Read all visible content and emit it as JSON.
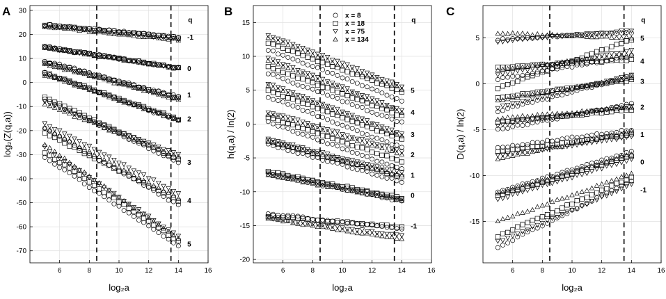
{
  "figure": {
    "panel_labels": [
      "A",
      "B",
      "C"
    ]
  },
  "chart_data": [
    {
      "type": "scatter",
      "panel": "A",
      "xlabel": "log₂a",
      "ylabel": "log₂(Z(q,a))",
      "xlim": [
        4,
        16
      ],
      "ylim": [
        -75,
        32
      ],
      "xticks": [
        6,
        8,
        10,
        12,
        14,
        16
      ],
      "yticks": [
        -70,
        -60,
        -50,
        -40,
        -30,
        -20,
        -10,
        0,
        10,
        20,
        30
      ],
      "grid": true,
      "legend_title": "q",
      "vlines": [
        8.5,
        13.5
      ],
      "x_start": 5,
      "x_end": 14,
      "n_points": 28,
      "groups": [
        {
          "q": "-1",
          "label_y": 19,
          "series": [
            {
              "marker": "circle",
              "y0": 24,
              "y1": 19
            },
            {
              "marker": "square",
              "y0": 24,
              "y1": 18.6
            },
            {
              "marker": "triangle-down",
              "y0": 23.6,
              "y1": 18.2
            },
            {
              "marker": "triangle-up",
              "y0": 23.2,
              "y1": 17.8
            }
          ]
        },
        {
          "q": "0",
          "label_y": 6,
          "series": [
            {
              "marker": "circle",
              "y0": 15,
              "y1": 6
            },
            {
              "marker": "square",
              "y0": 15,
              "y1": 6
            },
            {
              "marker": "triangle-down",
              "y0": 14.6,
              "y1": 6
            },
            {
              "marker": "triangle-up",
              "y0": 14.4,
              "y1": 6
            }
          ]
        },
        {
          "q": "1",
          "label_y": -5,
          "series": [
            {
              "marker": "circle",
              "y0": 9,
              "y1": -6
            },
            {
              "marker": "square",
              "y0": 8.6,
              "y1": -6.4
            },
            {
              "marker": "triangle-down",
              "y0": 8.2,
              "y1": -6.8
            },
            {
              "marker": "triangle-up",
              "y0": 7.8,
              "y1": -7.2
            }
          ]
        },
        {
          "q": "2",
          "label_y": -15,
          "series": [
            {
              "marker": "circle",
              "y0": 4,
              "y1": -16
            },
            {
              "marker": "square",
              "y0": 4,
              "y1": -15
            },
            {
              "marker": "triangle-down",
              "y0": 3.6,
              "y1": -15.4
            },
            {
              "marker": "triangle-up",
              "y0": 3.2,
              "y1": -15.8
            }
          ]
        },
        {
          "q": "3",
          "label_y": -33,
          "series": [
            {
              "marker": "circle",
              "y0": -7,
              "y1": -33
            },
            {
              "marker": "square",
              "y0": -6,
              "y1": -32
            },
            {
              "marker": "triangle-down",
              "y0": -8,
              "y1": -30
            },
            {
              "marker": "triangle-up",
              "y0": -9,
              "y1": -31
            }
          ]
        },
        {
          "q": "4",
          "label_y": -49,
          "series": [
            {
              "marker": "circle",
              "y0": -19,
              "y1": -51
            },
            {
              "marker": "square",
              "y0": -21,
              "y1": -49
            },
            {
              "marker": "triangle-down",
              "y0": -17,
              "y1": -46
            },
            {
              "marker": "triangle-up",
              "y0": -19,
              "y1": -48
            }
          ]
        },
        {
          "q": "5",
          "label_y": -67,
          "series": [
            {
              "marker": "circle",
              "y0": -31,
              "y1": -68
            },
            {
              "marker": "square",
              "y0": -29,
              "y1": -66
            },
            {
              "marker": "triangle-down",
              "y0": -27,
              "y1": -64
            },
            {
              "marker": "triangle-up",
              "y0": -26,
              "y1": -65
            }
          ]
        }
      ]
    },
    {
      "type": "scatter",
      "panel": "B",
      "xlabel": "log₂a",
      "ylabel": "h(q,a) / ln(2)",
      "xlim": [
        4,
        16
      ],
      "ylim": [
        -20.5,
        17.5
      ],
      "xticks": [
        6,
        8,
        10,
        12,
        14,
        16
      ],
      "yticks": [
        -20,
        -15,
        -10,
        -5,
        0,
        5,
        10,
        15
      ],
      "grid": true,
      "legend_title": "q",
      "legend": [
        {
          "marker": "circle",
          "label": "x = 8"
        },
        {
          "marker": "square",
          "label": "x = 18"
        },
        {
          "marker": "triangle-down",
          "label": "x = 75"
        },
        {
          "marker": "triangle-up",
          "label": "x = 134"
        }
      ],
      "vlines": [
        8.5,
        13.5
      ],
      "x_start": 5,
      "x_end": 14,
      "n_points": 28,
      "groups": [
        {
          "q": "5",
          "label_y": 5,
          "series": [
            {
              "marker": "circle",
              "y0": 11,
              "y1": 3.5
            },
            {
              "marker": "square",
              "y0": 12,
              "y1": 4.8
            },
            {
              "marker": "triangle-down",
              "y0": 13.2,
              "y1": 5.6
            },
            {
              "marker": "triangle-up",
              "y0": 12.8,
              "y1": 5.2
            }
          ]
        },
        {
          "q": "4",
          "label_y": 1.8,
          "series": [
            {
              "marker": "circle",
              "y0": 7.5,
              "y1": 0.2
            },
            {
              "marker": "square",
              "y0": 8.5,
              "y1": 1.2
            },
            {
              "marker": "triangle-down",
              "y0": 9.8,
              "y1": 2
            },
            {
              "marker": "triangle-up",
              "y0": 9.4,
              "y1": 1.7
            }
          ]
        },
        {
          "q": "3",
          "label_y": -1.5,
          "series": [
            {
              "marker": "circle",
              "y0": 4,
              "y1": -3.5
            },
            {
              "marker": "square",
              "y0": 5,
              "y1": -2.3
            },
            {
              "marker": "triangle-down",
              "y0": 6,
              "y1": -1.5
            },
            {
              "marker": "triangle-up",
              "y0": 5.7,
              "y1": -1.8
            }
          ]
        },
        {
          "q": "2",
          "label_y": -4.5,
          "series": [
            {
              "marker": "circle",
              "y0": 0.3,
              "y1": -6.7
            },
            {
              "marker": "square",
              "y0": 1,
              "y1": -5.5
            },
            {
              "marker": "triangle-down",
              "y0": 1.8,
              "y1": -4
            },
            {
              "marker": "triangle-up",
              "y0": 1.5,
              "y1": -4.5
            }
          ]
        },
        {
          "q": "1",
          "label_y": -7.5,
          "series": [
            {
              "marker": "circle",
              "y0": -3,
              "y1": -8.5
            },
            {
              "marker": "square",
              "y0": -2.5,
              "y1": -7.8
            },
            {
              "marker": "triangle-down",
              "y0": -2.2,
              "y1": -7.2
            },
            {
              "marker": "triangle-up",
              "y0": -2.6,
              "y1": -7.6
            }
          ]
        },
        {
          "q": "0",
          "label_y": -10.5,
          "series": [
            {
              "marker": "circle",
              "y0": -7.4,
              "y1": -11.4
            },
            {
              "marker": "square",
              "y0": -7,
              "y1": -10.9
            },
            {
              "marker": "triangle-down",
              "y0": -7.2,
              "y1": -11
            },
            {
              "marker": "triangle-up",
              "y0": -7.6,
              "y1": -11.2
            }
          ]
        },
        {
          "q": "-1",
          "label_y": -15,
          "series": [
            {
              "marker": "circle",
              "y0": -13.2,
              "y1": -15.5
            },
            {
              "marker": "square",
              "y0": -13.6,
              "y1": -15.2
            },
            {
              "marker": "triangle-down",
              "y0": -13.8,
              "y1": -16.5
            },
            {
              "marker": "triangle-up",
              "y0": -14,
              "y1": -17
            }
          ]
        }
      ]
    },
    {
      "type": "scatter",
      "panel": "C",
      "xlabel": "log₂a",
      "ylabel": "D(q,a) / ln(2)",
      "xlim": [
        4,
        16
      ],
      "ylim": [
        -19.5,
        8.5
      ],
      "xticks": [
        6,
        8,
        10,
        12,
        14,
        16
      ],
      "yticks": [
        -15,
        -10,
        -5,
        0,
        5
      ],
      "grid": true,
      "legend_title": "q",
      "vlines": [
        8.5,
        13.5
      ],
      "x_start": 5,
      "x_end": 14,
      "n_points": 28,
      "groups": [
        {
          "q": "5",
          "label_y": 5,
          "series": [
            {
              "marker": "circle",
              "y0": 4.8,
              "y1": 5.6
            },
            {
              "marker": "square",
              "y0": -0.5,
              "y1": 4.8
            },
            {
              "marker": "triangle-down",
              "y0": 4.6,
              "y1": 5.8
            },
            {
              "marker": "triangle-up",
              "y0": 5.5,
              "y1": 5
            }
          ]
        },
        {
          "q": "4",
          "label_y": 2.5,
          "series": [
            {
              "marker": "circle",
              "y0": 0.5,
              "y1": 3
            },
            {
              "marker": "square",
              "y0": 1.8,
              "y1": 2.6
            },
            {
              "marker": "triangle-down",
              "y0": 1,
              "y1": 3.6
            },
            {
              "marker": "triangle-up",
              "y0": 1.5,
              "y1": 3.2
            }
          ]
        },
        {
          "q": "3",
          "label_y": 0.3,
          "series": [
            {
              "marker": "circle",
              "y0": -3,
              "y1": 0.8
            },
            {
              "marker": "square",
              "y0": -1.5,
              "y1": 0.4
            },
            {
              "marker": "triangle-down",
              "y0": -2.6,
              "y1": 0.9
            },
            {
              "marker": "triangle-up",
              "y0": -1.8,
              "y1": 0.6
            }
          ]
        },
        {
          "q": "2",
          "label_y": -2.5,
          "series": [
            {
              "marker": "circle",
              "y0": -5,
              "y1": -2.2
            },
            {
              "marker": "square",
              "y0": -4.2,
              "y1": -2.8
            },
            {
              "marker": "triangle-down",
              "y0": -4.5,
              "y1": -2.4
            },
            {
              "marker": "triangle-up",
              "y0": -3.8,
              "y1": -2.6
            }
          ]
        },
        {
          "q": "1",
          "label_y": -5.5,
          "series": [
            {
              "marker": "circle",
              "y0": -7,
              "y1": -5
            },
            {
              "marker": "square",
              "y0": -7.4,
              "y1": -5.5
            },
            {
              "marker": "triangle-down",
              "y0": -7.8,
              "y1": -5.8
            },
            {
              "marker": "triangle-up",
              "y0": -8.2,
              "y1": -5.2
            }
          ]
        },
        {
          "q": "0",
          "label_y": -8.5,
          "series": [
            {
              "marker": "circle",
              "y0": -11.8,
              "y1": -7.4
            },
            {
              "marker": "square",
              "y0": -12.2,
              "y1": -7.8
            },
            {
              "marker": "triangle-down",
              "y0": -12.6,
              "y1": -8.2
            },
            {
              "marker": "triangle-up",
              "y0": -12,
              "y1": -7.6
            }
          ]
        },
        {
          "q": "-1",
          "label_y": -11.5,
          "series": [
            {
              "marker": "circle",
              "y0": -17.8,
              "y1": -10.6
            },
            {
              "marker": "square",
              "y0": -16.6,
              "y1": -10.2
            },
            {
              "marker": "triangle-down",
              "y0": -17.2,
              "y1": -11
            },
            {
              "marker": "triangle-up",
              "y0": -15,
              "y1": -9.8
            }
          ]
        }
      ]
    }
  ]
}
